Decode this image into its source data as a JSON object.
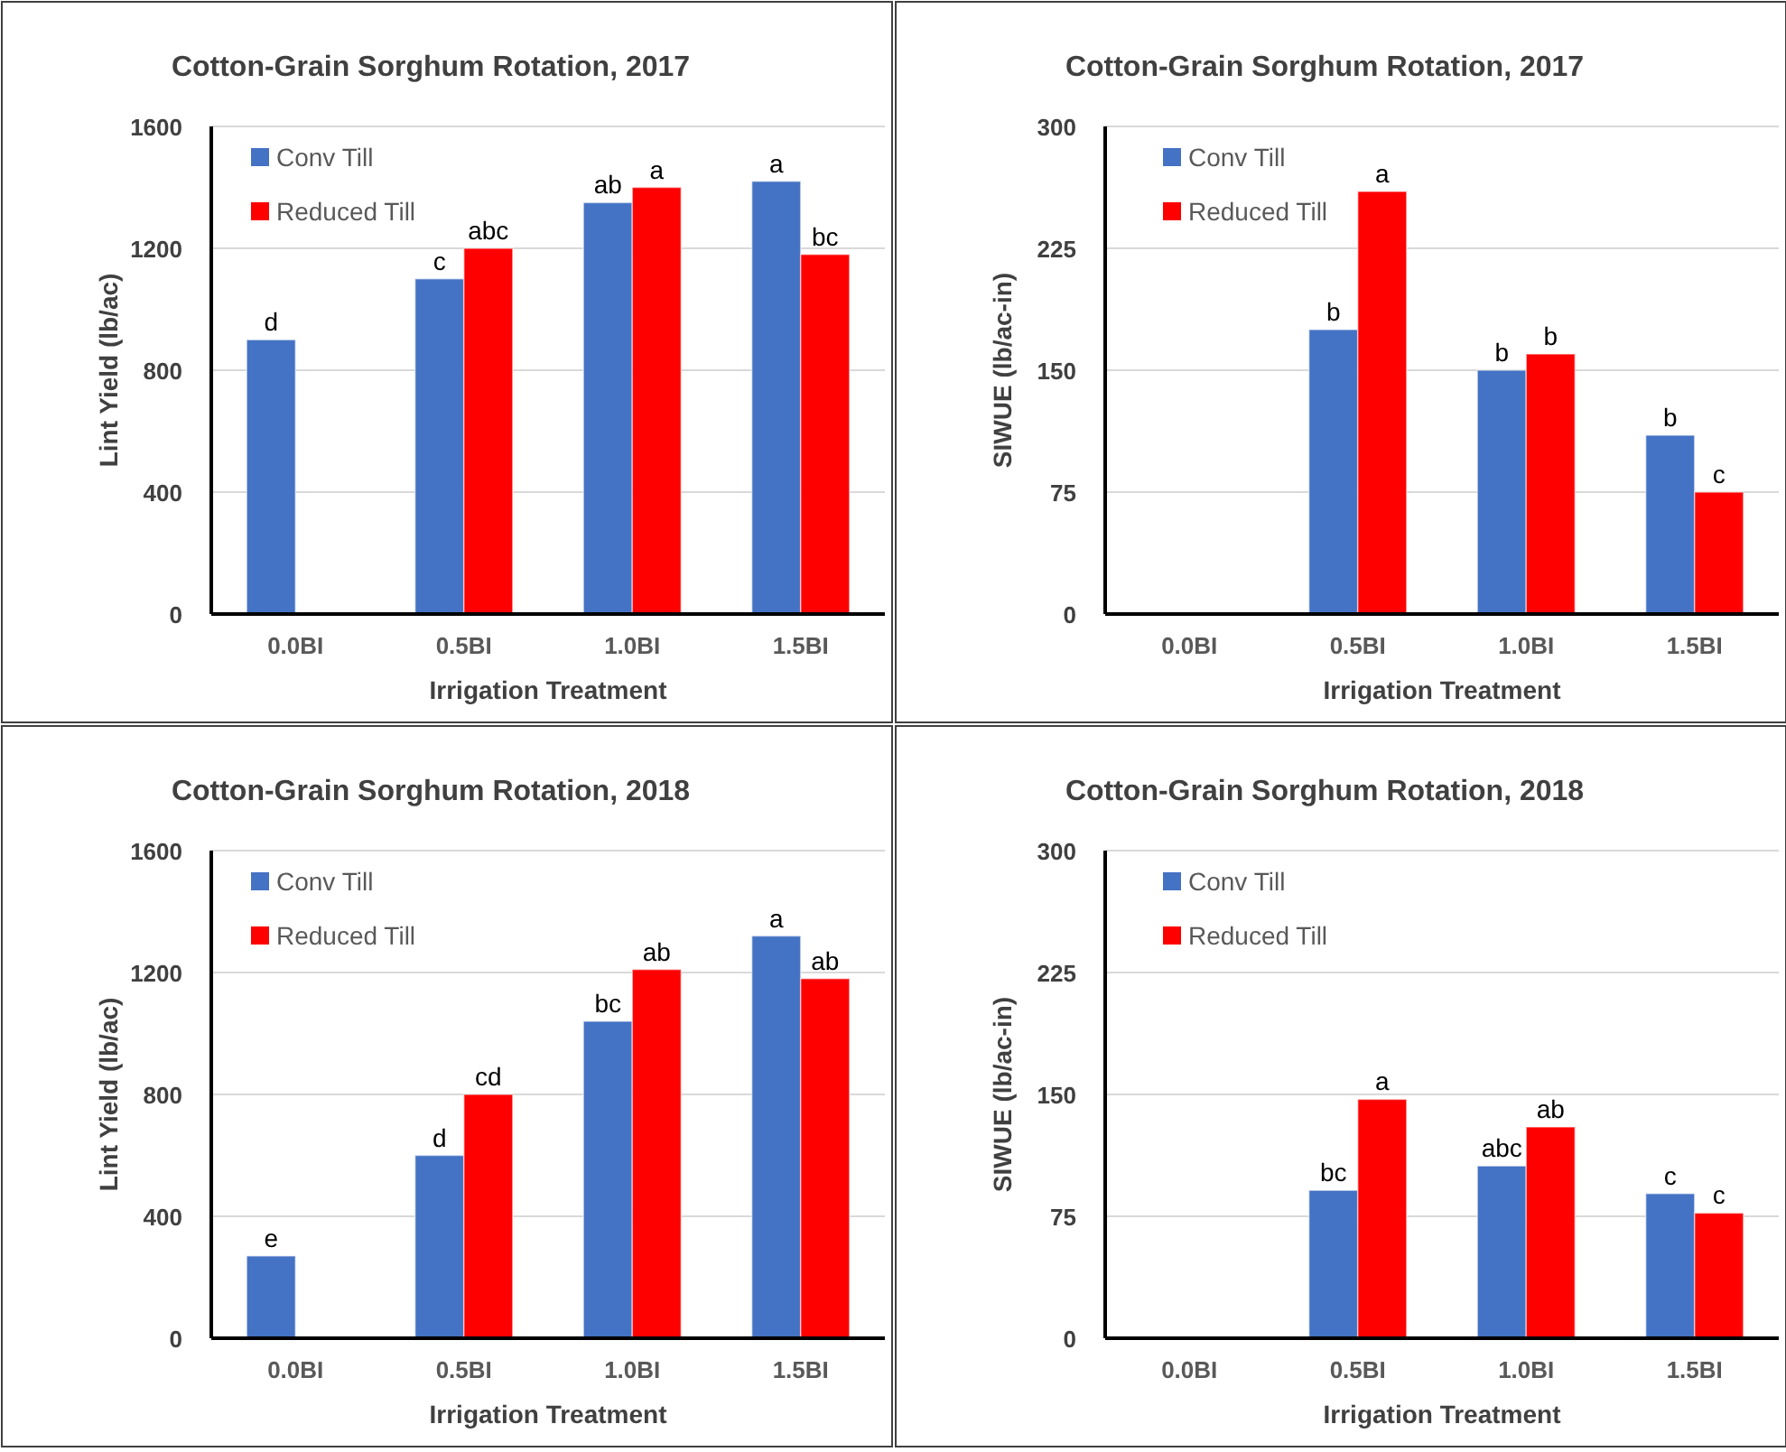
{
  "chart_data": [
    {
      "type": "bar",
      "title": "Cotton-Grain Sorghum Rotation, 2017",
      "xlabel": "Irrigation Treatment",
      "ylabel": "Lint Yield (lb/ac)",
      "categories": [
        "0.0BI",
        "0.5BI",
        "1.0BI",
        "1.5BI"
      ],
      "ylim": [
        0,
        1600
      ],
      "yticks": [
        0,
        400,
        800,
        1200,
        1600
      ],
      "grid": "y",
      "legend": "top left",
      "series": [
        {
          "name": "Conv Till",
          "color": "#4472c4",
          "values": [
            900,
            1100,
            1350,
            1420
          ],
          "value_labels": [
            "d",
            "c",
            "ab",
            "a"
          ]
        },
        {
          "name": "Reduced Till",
          "color": "#ff0000",
          "values": [
            null,
            1200,
            1400,
            1180
          ],
          "value_labels": [
            null,
            "abc",
            "a",
            "bc"
          ]
        }
      ]
    },
    {
      "type": "bar",
      "title": "Cotton-Grain Sorghum Rotation, 2017",
      "xlabel": "Irrigation Treatment",
      "ylabel": "SIWUE (lb/ac-in)",
      "categories": [
        "0.0BI",
        "0.5BI",
        "1.0BI",
        "1.5BI"
      ],
      "ylim": [
        0,
        300
      ],
      "yticks": [
        0,
        75,
        150,
        225,
        300
      ],
      "grid": "y",
      "legend": "top left",
      "series": [
        {
          "name": "Conv Till",
          "color": "#4472c4",
          "values": [
            null,
            175,
            150,
            110
          ],
          "value_labels": [
            null,
            "b",
            "b",
            "b"
          ]
        },
        {
          "name": "Reduced Till",
          "color": "#ff0000",
          "values": [
            null,
            260,
            160,
            75
          ],
          "value_labels": [
            null,
            "a",
            "b",
            "c"
          ]
        }
      ]
    },
    {
      "type": "bar",
      "title": "Cotton-Grain Sorghum Rotation, 2018",
      "xlabel": "Irrigation Treatment",
      "ylabel": "Lint Yield (lb/ac)",
      "categories": [
        "0.0BI",
        "0.5BI",
        "1.0BI",
        "1.5BI"
      ],
      "ylim": [
        0,
        1600
      ],
      "yticks": [
        0,
        400,
        800,
        1200,
        1600
      ],
      "grid": "y",
      "legend": "top left",
      "series": [
        {
          "name": "Conv Till",
          "color": "#4472c4",
          "values": [
            270,
            600,
            1040,
            1320
          ],
          "value_labels": [
            "e",
            "d",
            "bc",
            "a"
          ]
        },
        {
          "name": "Reduced Till",
          "color": "#ff0000",
          "values": [
            null,
            800,
            1210,
            1180
          ],
          "value_labels": [
            null,
            "cd",
            "ab",
            "ab"
          ]
        }
      ]
    },
    {
      "type": "bar",
      "title": "Cotton-Grain Sorghum Rotation, 2018",
      "xlabel": "Irrigation Treatment",
      "ylabel": "SIWUE (lb/ac-in)",
      "categories": [
        "0.0BI",
        "0.5BI",
        "1.0BI",
        "1.5BI"
      ],
      "ylim": [
        0,
        300
      ],
      "yticks": [
        0,
        75,
        150,
        225,
        300
      ],
      "grid": "y",
      "legend": "top left",
      "series": [
        {
          "name": "Conv Till",
          "color": "#4472c4",
          "values": [
            null,
            91,
            106,
            89
          ],
          "value_labels": [
            null,
            "bc",
            "abc",
            "c"
          ]
        },
        {
          "name": "Reduced Till",
          "color": "#ff0000",
          "values": [
            null,
            147,
            130,
            77
          ],
          "value_labels": [
            null,
            "a",
            "ab",
            "c"
          ]
        }
      ]
    }
  ]
}
